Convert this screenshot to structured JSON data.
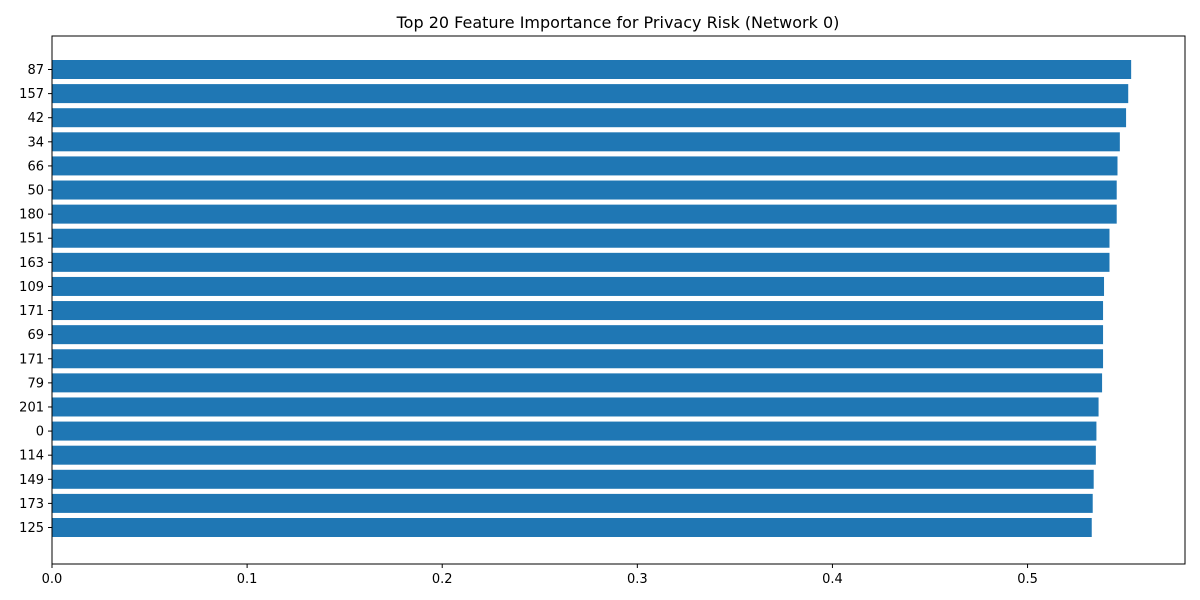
{
  "chart_data": {
    "type": "bar",
    "orientation": "horizontal",
    "title": "Top 20 Feature Importance for Privacy Risk (Network 0)",
    "xlabel": "",
    "ylabel": "",
    "categories": [
      "87",
      "157",
      "42",
      "34",
      "66",
      "50",
      "180",
      "151",
      "163",
      "109",
      "171",
      "69",
      "171",
      "79",
      "201",
      "0",
      "114",
      "149",
      "173",
      "125"
    ],
    "values": [
      0.5531,
      0.5516,
      0.5505,
      0.5473,
      0.5461,
      0.5457,
      0.5457,
      0.542,
      0.542,
      0.5392,
      0.5387,
      0.5387,
      0.5387,
      0.5382,
      0.5364,
      0.5353,
      0.535,
      0.5339,
      0.5334,
      0.5329
    ],
    "xlim": [
      0,
      0.5807
    ],
    "xticks": [
      "0.0",
      "0.1",
      "0.2",
      "0.3",
      "0.4",
      "0.5"
    ],
    "bar_color": "#1f77b4",
    "grid": false,
    "legend": "none"
  }
}
